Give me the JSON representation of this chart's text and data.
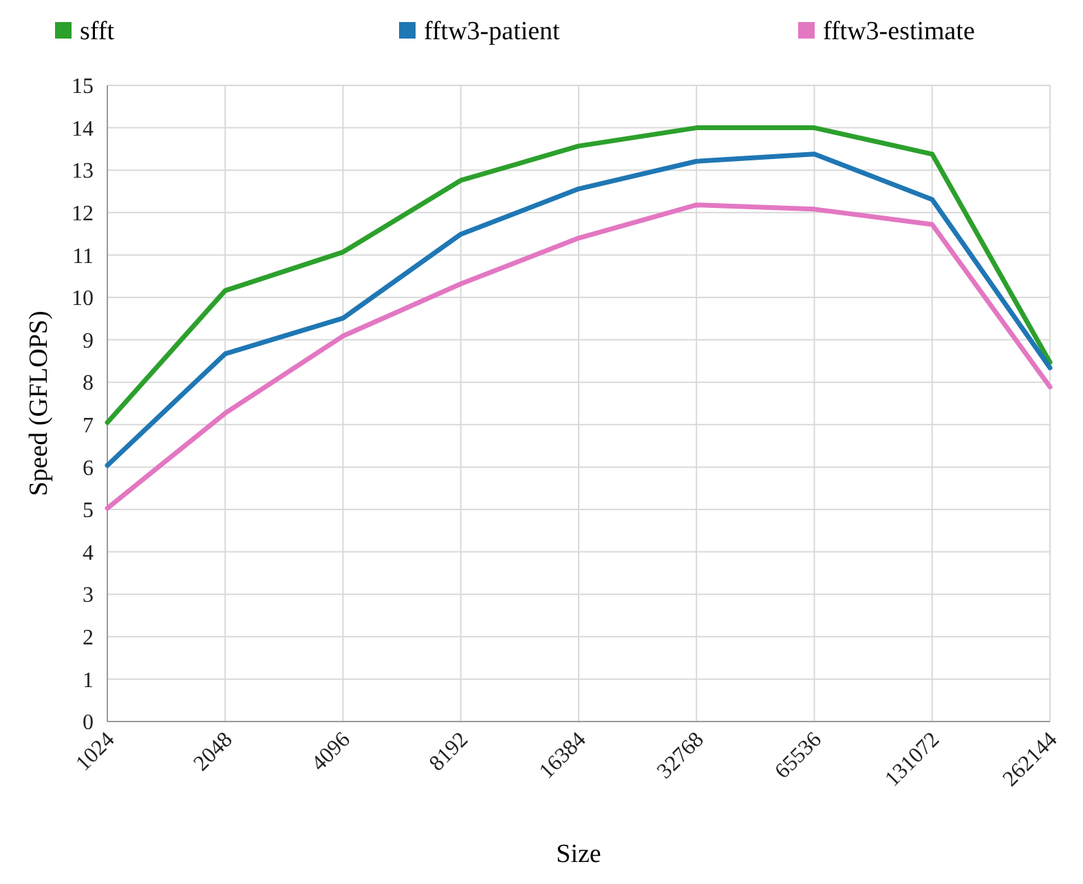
{
  "chart_data": {
    "type": "line",
    "xlabel": "Size",
    "ylabel": "Speed (GFLOPS)",
    "categories": [
      "1024",
      "2048",
      "4096",
      "8192",
      "16384",
      "32768",
      "65536",
      "131072",
      "262144"
    ],
    "series": [
      {
        "name": "sfft",
        "color": "#2ca02c",
        "values": [
          7.05,
          10.16,
          11.07,
          12.76,
          13.57,
          14.0,
          14.0,
          13.38,
          8.47
        ]
      },
      {
        "name": "fftw3-patient",
        "color": "#1f77b4",
        "values": [
          6.04,
          8.67,
          9.51,
          11.49,
          12.56,
          13.21,
          13.38,
          12.31,
          8.34
        ]
      },
      {
        "name": "fftw3-estimate",
        "color": "#e377c2",
        "values": [
          5.03,
          7.27,
          9.09,
          10.32,
          11.4,
          12.18,
          12.08,
          11.72,
          7.89
        ]
      }
    ],
    "ylim": [
      0,
      15
    ],
    "yticks": [
      0,
      1,
      2,
      3,
      4,
      5,
      6,
      7,
      8,
      9,
      10,
      11,
      12,
      13,
      14,
      15
    ],
    "grid": true,
    "legend": "top",
    "marker": "none",
    "line_style": "solid"
  }
}
